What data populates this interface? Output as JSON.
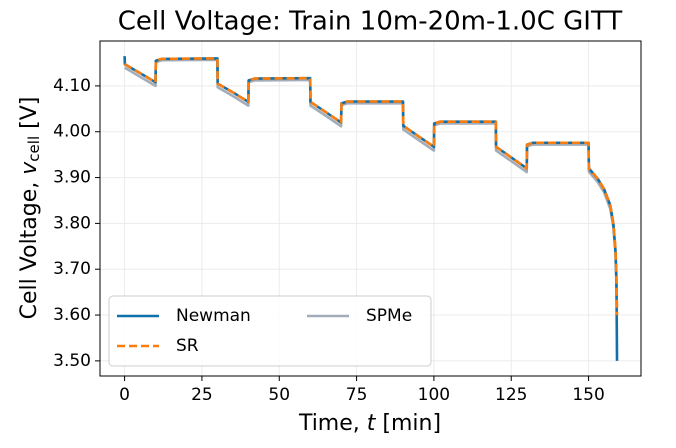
{
  "chart_data": {
    "type": "line",
    "title": "Cell Voltage: Train 10m-20m-1.0C GITT",
    "xlabel": [
      "Time, ",
      "t",
      " [min]"
    ],
    "ylabel": [
      "Cell Voltage, ",
      "v",
      "cell",
      " [V]"
    ],
    "xlim": [
      -7.95,
      166.95
    ],
    "xticks": [
      0,
      25,
      50,
      75,
      100,
      125,
      150
    ],
    "ylim": [
      3.467,
      4.198
    ],
    "yticks": [
      {
        "value": 3.5,
        "label": "3.50"
      },
      {
        "value": 3.6,
        "label": "3.60"
      },
      {
        "value": 3.7,
        "label": "3.70"
      },
      {
        "value": 3.8,
        "label": "3.80"
      },
      {
        "value": 3.9,
        "label": "3.90"
      },
      {
        "value": 4.0,
        "label": "4.00"
      },
      {
        "value": 4.1,
        "label": "4.10"
      }
    ],
    "grid": true,
    "legend": "lower left",
    "legend_columns": 2,
    "series": [
      {
        "name": "Newman",
        "color": "#1170aa",
        "linestyle": "solid",
        "x": [
          0,
          0.1,
          5,
          10,
          10.1,
          12,
          30,
          30.1,
          35,
          40,
          40.1,
          42,
          60,
          60.1,
          65,
          70,
          70.1,
          72,
          90,
          90.1,
          95,
          100,
          100.1,
          102,
          120,
          120.1,
          125,
          130,
          130.1,
          132,
          150,
          150.1,
          153,
          155,
          157,
          158,
          158.7,
          159,
          159.2
        ],
        "values": [
          4.165,
          4.147,
          4.128,
          4.108,
          4.155,
          4.159,
          4.16,
          4.105,
          4.086,
          4.065,
          4.112,
          4.116,
          4.117,
          4.065,
          4.043,
          4.02,
          4.062,
          4.066,
          4.066,
          4.013,
          3.99,
          3.967,
          4.018,
          4.022,
          4.022,
          3.967,
          3.944,
          3.92,
          3.972,
          3.976,
          3.976,
          3.92,
          3.897,
          3.875,
          3.84,
          3.8,
          3.74,
          3.68,
          3.5
        ]
      },
      {
        "name": "SR",
        "color": "#fc7d0b",
        "linestyle": "dashed",
        "x": [
          0,
          5,
          10,
          10.1,
          12,
          30,
          30.1,
          35,
          40,
          40.1,
          42,
          60,
          60.1,
          65,
          70,
          70.1,
          72,
          90,
          90.1,
          95,
          100,
          100.1,
          102,
          120,
          120.1,
          125,
          130,
          130.1,
          132,
          150,
          150.1,
          153,
          155,
          157,
          158,
          158.7,
          159,
          159.2
        ],
        "values": [
          4.148,
          4.128,
          4.108,
          4.155,
          4.159,
          4.16,
          4.105,
          4.086,
          4.065,
          4.112,
          4.116,
          4.117,
          4.065,
          4.043,
          4.02,
          4.062,
          4.066,
          4.066,
          4.013,
          3.99,
          3.967,
          4.018,
          4.022,
          4.022,
          3.967,
          3.944,
          3.92,
          3.972,
          3.976,
          3.976,
          3.92,
          3.897,
          3.875,
          3.84,
          3.8,
          3.745,
          3.69,
          3.6
        ]
      },
      {
        "name": "SPMe",
        "color": "#a3acb9",
        "linestyle": "solid",
        "x": [
          0,
          5,
          10,
          10.1,
          12,
          30,
          30.1,
          35,
          40,
          40.1,
          42,
          60,
          60.1,
          65,
          70,
          70.1,
          72,
          90,
          90.1,
          95,
          100,
          100.1,
          102,
          120,
          120.1,
          125,
          130,
          130.1,
          132,
          150,
          150.1,
          153,
          155,
          157,
          158,
          158.7,
          159.1
        ],
        "values": [
          4.14,
          4.12,
          4.1,
          4.152,
          4.156,
          4.157,
          4.097,
          4.078,
          4.057,
          4.108,
          4.112,
          4.113,
          4.057,
          4.035,
          4.012,
          4.058,
          4.062,
          4.062,
          4.005,
          3.982,
          3.959,
          4.014,
          4.018,
          4.018,
          3.959,
          3.936,
          3.912,
          3.968,
          3.972,
          3.972,
          3.913,
          3.89,
          3.868,
          3.832,
          3.792,
          3.735,
          3.64
        ]
      }
    ]
  }
}
